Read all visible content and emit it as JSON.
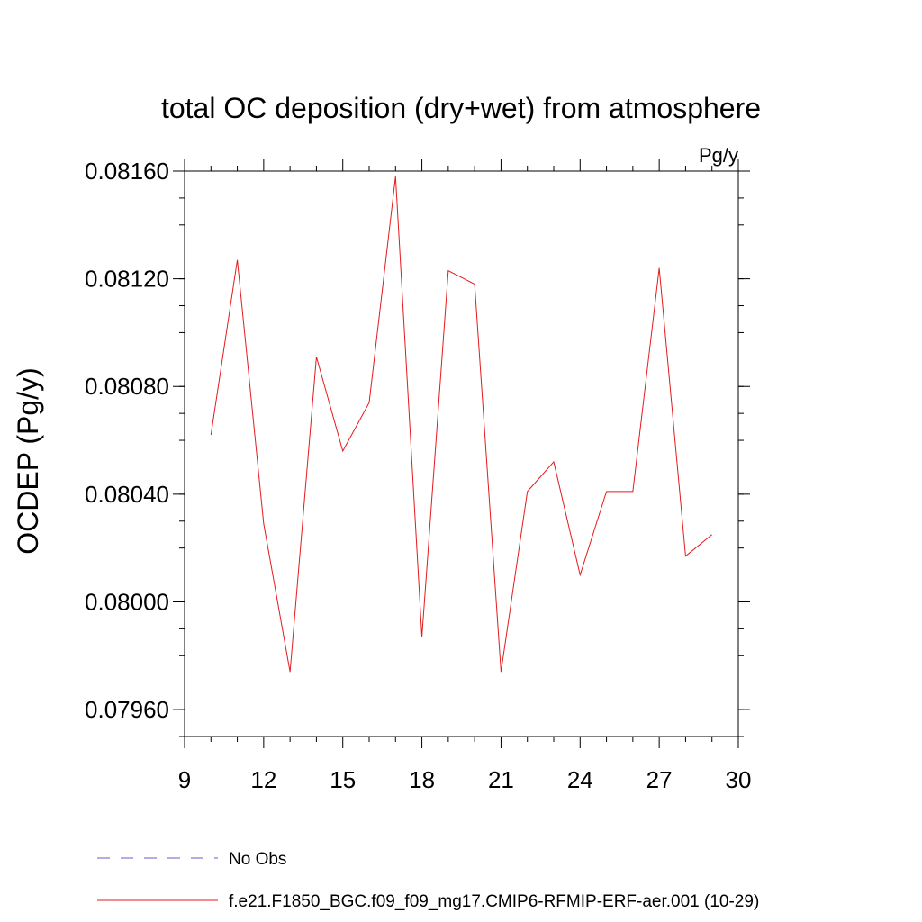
{
  "chart_data": {
    "type": "line",
    "title": "total OC deposition (dry+wet) from atmosphere",
    "units_label": "Pg/y",
    "ylabel": "OCDEP  (Pg/y)",
    "xlabel": "",
    "xlim": [
      9,
      30
    ],
    "ylim": [
      0.0795,
      0.0816
    ],
    "xticks": [
      9,
      12,
      15,
      18,
      21,
      24,
      27,
      30
    ],
    "xtick_labels": [
      "9",
      "12",
      "15",
      "18",
      "21",
      "24",
      "27",
      "30"
    ],
    "yticks": [
      0.0796,
      0.08,
      0.0804,
      0.0808,
      0.0812,
      0.0816
    ],
    "ytick_labels": [
      "0.07960",
      "0.08000",
      "0.08040",
      "0.08080",
      "0.08120",
      "0.08160"
    ],
    "series": [
      {
        "name": "f.e21.F1850_BGC.f09_f09_mg17.CMIP6-RFMIP-ERF-aer.001 (10-29)",
        "color": "#e41a1c",
        "x": [
          10,
          11,
          12,
          13,
          14,
          15,
          16,
          17,
          18,
          19,
          20,
          21,
          22,
          23,
          24,
          25,
          26,
          27,
          28,
          29
        ],
        "values": [
          0.08062,
          0.08127,
          0.08029,
          0.07974,
          0.08091,
          0.08056,
          0.08074,
          0.08158,
          0.07987,
          0.08123,
          0.08118,
          0.07974,
          0.08041,
          0.08052,
          0.0801,
          0.08041,
          0.08041,
          0.08124,
          0.08017,
          0.08025
        ]
      }
    ],
    "legend": [
      {
        "label": "No Obs",
        "style": "dashed",
        "color": "#6a5acd"
      },
      {
        "label": "f.e21.F1850_BGC.f09_f09_mg17.CMIP6-RFMIP-ERF-aer.001 (10-29)",
        "style": "solid",
        "color": "#e41a1c"
      }
    ],
    "legend_position": "bottom-left"
  }
}
